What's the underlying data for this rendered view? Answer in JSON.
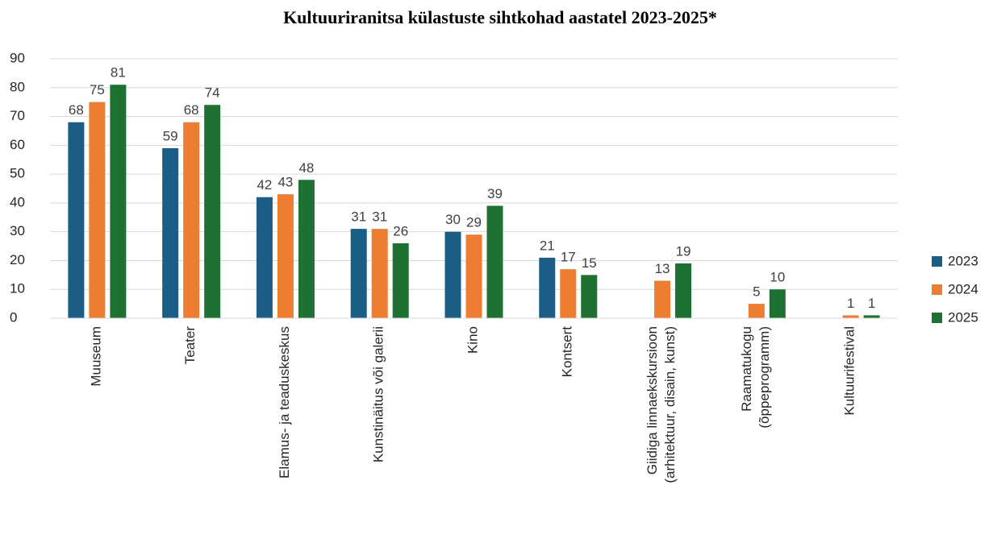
{
  "chart_data": {
    "type": "bar",
    "title": "Kultuuriranitsa külastuste sihtkohad aastatel 2023-2025*",
    "categories": [
      "Muuseum",
      "Teater",
      "Elamus- ja teaduskeskus",
      "Kunstinäitus või galerii",
      "Kino",
      "Kontsert",
      "Giidiga linnaekskursioon\n(arhitektuur, disain, kunst)",
      "Raamatukogu\n(õppeprogramm)",
      "Kultuurifestival"
    ],
    "series": [
      {
        "name": "2023",
        "color": "#1a5e85",
        "values": [
          68,
          59,
          42,
          31,
          30,
          21,
          null,
          null,
          null
        ]
      },
      {
        "name": "2024",
        "color": "#ed7d31",
        "values": [
          75,
          68,
          43,
          31,
          29,
          17,
          13,
          5,
          1
        ]
      },
      {
        "name": "2025",
        "color": "#1e7130",
        "values": [
          81,
          74,
          48,
          26,
          39,
          15,
          19,
          10,
          1
        ]
      }
    ],
    "ylim": [
      0,
      90
    ],
    "yticks": [
      0,
      10,
      20,
      30,
      40,
      50,
      60,
      70,
      80,
      90
    ],
    "grid": true,
    "legend": "right"
  }
}
